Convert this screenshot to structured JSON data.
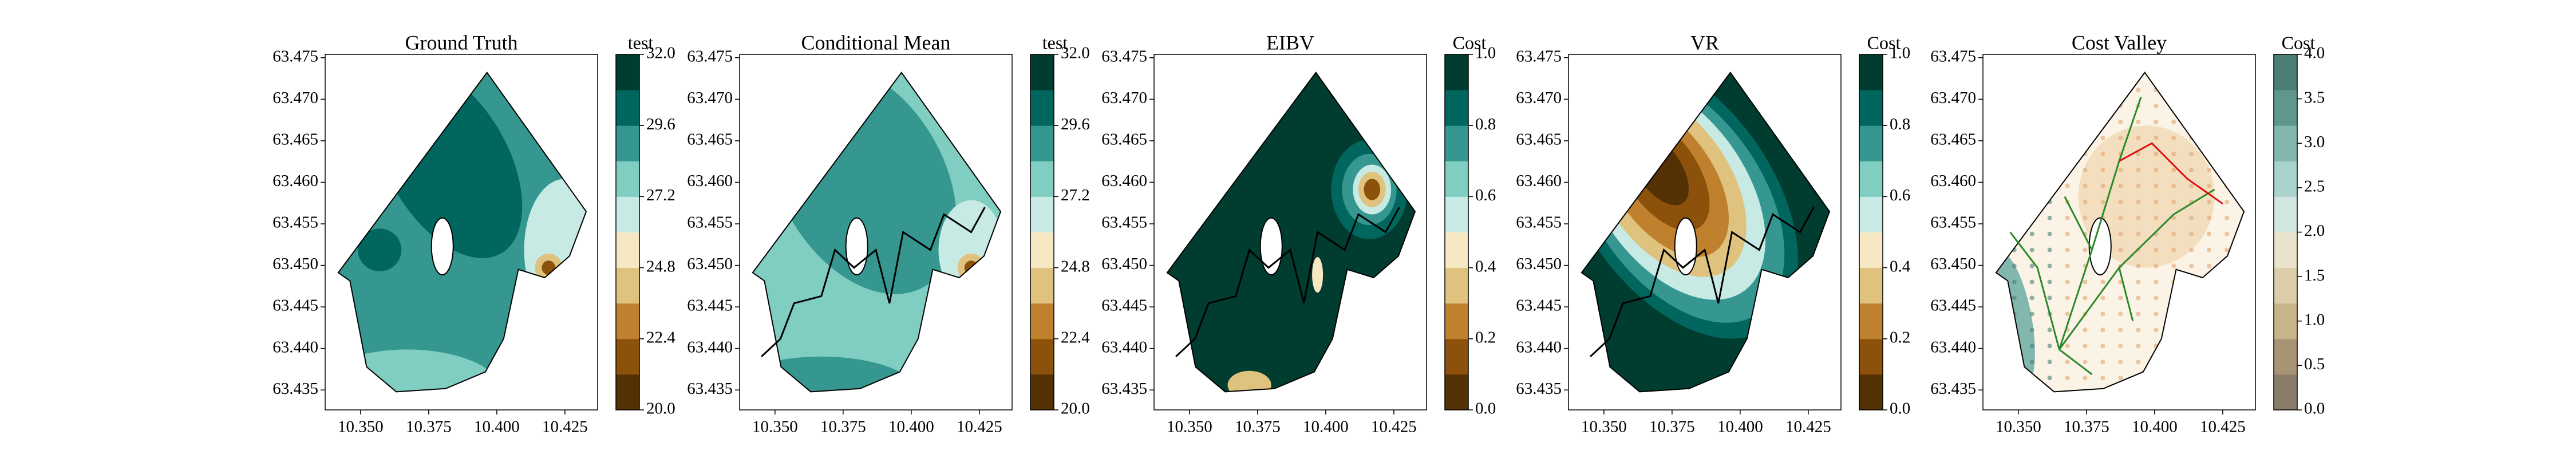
{
  "chart_data": [
    {
      "type": "contour",
      "title": "Ground Truth",
      "colorbar_label": "test",
      "xlim": [
        10.337,
        10.437
      ],
      "ylim": [
        63.4326,
        63.4754
      ],
      "xticks": [
        {
          "value": 10.35,
          "label": "10.350"
        },
        10.375,
        {
          "value": 10.4,
          "label": "10.400"
        },
        10.425
      ],
      "yticks": [
        63.435,
        {
          "value": 63.44,
          "label": "63.440"
        },
        63.445,
        {
          "value": 63.45,
          "label": "63.450"
        },
        63.455,
        {
          "value": 63.46,
          "label": "63.460"
        },
        63.465,
        {
          "value": 63.47,
          "label": "63.470"
        },
        63.475
      ],
      "clim": [
        20,
        32
      ],
      "cticks": [
        {
          "value": 20,
          "label": "20.0"
        },
        22.4,
        24.8,
        27.2,
        29.6,
        {
          "value": 32,
          "label": "32.0"
        }
      ],
      "colors": [
        "#543005",
        "#8c510a",
        "#bf812d",
        "#dfc27d",
        "#f6e8c3",
        "#c7eae5",
        "#80cdc1",
        "#35978f",
        "#01665e",
        "#003c30"
      ]
    },
    {
      "type": "contour",
      "title": "Conditional Mean",
      "colorbar_label": "test",
      "xlim": [
        10.337,
        10.437
      ],
      "ylim": [
        63.4326,
        63.4754
      ],
      "xticks": [
        {
          "value": 10.35,
          "label": "10.350"
        },
        10.375,
        {
          "value": 10.4,
          "label": "10.400"
        },
        10.425
      ],
      "yticks": [
        63.435,
        {
          "value": 63.44,
          "label": "63.440"
        },
        63.445,
        {
          "value": 63.45,
          "label": "63.450"
        },
        63.455,
        {
          "value": 63.46,
          "label": "63.460"
        },
        63.465,
        {
          "value": 63.47,
          "label": "63.470"
        },
        63.475
      ],
      "clim": [
        20,
        32
      ],
      "cticks": [
        {
          "value": 20,
          "label": "20.0"
        },
        22.4,
        24.8,
        27.2,
        29.6,
        {
          "value": 32,
          "label": "32.0"
        }
      ],
      "colors": [
        "#543005",
        "#8c510a",
        "#bf812d",
        "#dfc27d",
        "#f6e8c3",
        "#c7eae5",
        "#80cdc1",
        "#35978f",
        "#01665e",
        "#003c30"
      ]
    },
    {
      "type": "contour",
      "title": "EIBV",
      "colorbar_label": "Cost",
      "xlim": [
        10.337,
        10.437
      ],
      "ylim": [
        63.4326,
        63.4754
      ],
      "xticks": [
        {
          "value": 10.35,
          "label": "10.350"
        },
        10.375,
        {
          "value": 10.4,
          "label": "10.400"
        },
        10.425
      ],
      "yticks": [
        63.435,
        {
          "value": 63.44,
          "label": "63.440"
        },
        63.445,
        {
          "value": 63.45,
          "label": "63.450"
        },
        63.455,
        {
          "value": 63.46,
          "label": "63.460"
        },
        63.465,
        {
          "value": 63.47,
          "label": "63.470"
        },
        63.475
      ],
      "clim": [
        0,
        1
      ],
      "cticks": [
        {
          "value": 0,
          "label": "0.0"
        },
        0.2,
        0.4,
        0.6,
        0.8,
        {
          "value": 1,
          "label": "1.0"
        }
      ],
      "colors": [
        "#543005",
        "#8c510a",
        "#bf812d",
        "#dfc27d",
        "#f6e8c3",
        "#c7eae5",
        "#80cdc1",
        "#35978f",
        "#01665e",
        "#003c30"
      ]
    },
    {
      "type": "contour",
      "title": "VR",
      "colorbar_label": "Cost",
      "xlim": [
        10.337,
        10.437
      ],
      "ylim": [
        63.4326,
        63.4754
      ],
      "xticks": [
        {
          "value": 10.35,
          "label": "10.350"
        },
        10.375,
        {
          "value": 10.4,
          "label": "10.400"
        },
        10.425
      ],
      "yticks": [
        63.435,
        {
          "value": 63.44,
          "label": "63.440"
        },
        63.445,
        {
          "value": 63.45,
          "label": "63.450"
        },
        63.455,
        {
          "value": 63.46,
          "label": "63.460"
        },
        63.465,
        {
          "value": 63.47,
          "label": "63.470"
        },
        63.475
      ],
      "clim": [
        0,
        1
      ],
      "cticks": [
        {
          "value": 0,
          "label": "0.0"
        },
        0.2,
        0.4,
        0.6,
        0.8,
        {
          "value": 1,
          "label": "1.0"
        }
      ],
      "colors": [
        "#543005",
        "#8c510a",
        "#bf812d",
        "#dfc27d",
        "#f6e8c3",
        "#c7eae5",
        "#80cdc1",
        "#35978f",
        "#01665e",
        "#003c30"
      ]
    },
    {
      "type": "contour",
      "title": "Cost Valley",
      "colorbar_label": "Cost",
      "xlim": [
        10.337,
        10.437
      ],
      "ylim": [
        63.4326,
        63.4754
      ],
      "xticks": [
        {
          "value": 10.35,
          "label": "10.350"
        },
        10.375,
        {
          "value": 10.4,
          "label": "10.400"
        },
        10.425
      ],
      "yticks": [
        63.435,
        {
          "value": 63.44,
          "label": "63.440"
        },
        63.445,
        {
          "value": 63.45,
          "label": "63.450"
        },
        63.455,
        {
          "value": 63.46,
          "label": "63.460"
        },
        63.465,
        {
          "value": 63.47,
          "label": "63.470"
        },
        63.475
      ],
      "clim": [
        0,
        4
      ],
      "cticks": [
        {
          "value": 0,
          "label": "0.0"
        },
        0.5,
        {
          "value": 1,
          "label": "1.0"
        },
        1.5,
        {
          "value": 2,
          "label": "2.0"
        },
        2.5,
        {
          "value": 3,
          "label": "3.0"
        },
        3.5,
        {
          "value": 4,
          "label": "4.0"
        }
      ],
      "colors": [
        "#8a7d6a",
        "#a89474",
        "#c8b48a",
        "#dccdaa",
        "#ebe2cc",
        "#d4e6e2",
        "#a9d3cc",
        "#82b7ae",
        "#5f968e",
        "#4c7d76"
      ]
    }
  ]
}
